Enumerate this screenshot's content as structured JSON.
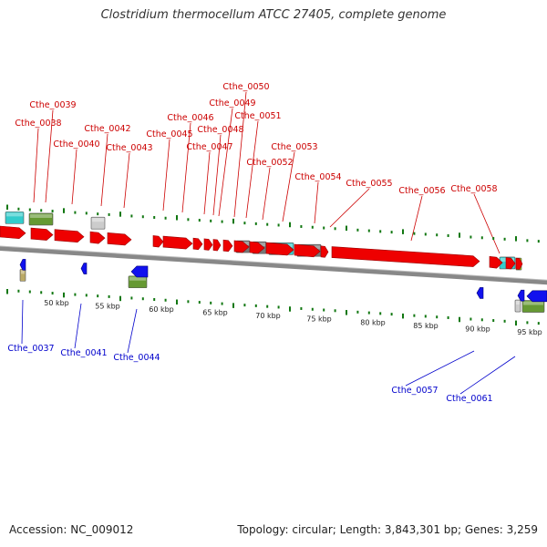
{
  "title": "Clostridium thermocellum ATCC 27405, complete genome",
  "footer": {
    "accession": "Accession: NC_009012",
    "summary": "Topology: circular; Length: 3,843,301 bp; Genes: 3,259"
  },
  "colors": {
    "forward_label": "#cc0000",
    "reverse_label": "#0000cc",
    "forward_gene": "#ee0000",
    "reverse_gene": "#1111ee",
    "backbone": "#888888",
    "tick_forward": "#117711",
    "rna": "#33cccc",
    "feature_green": "#669933",
    "feature_gray": "#777777",
    "feature_light_gray": "#cccccc",
    "feature_olive": "#bbaa66",
    "feature_lime": "#99dd11"
  },
  "scale_labels": [
    "50 kbp",
    "55 kbp",
    "60 kbp",
    "65 kbp",
    "70 kbp",
    "75 kbp",
    "80 kbp",
    "85 kbp",
    "90 kbp",
    "95 kbp"
  ],
  "forward_labels": [
    "Cthe_0038",
    "Cthe_0039",
    "Cthe_0040",
    "Cthe_0042",
    "Cthe_0043",
    "Cthe_0045",
    "Cthe_0046",
    "Cthe_0047",
    "Cthe_0048",
    "Cthe_0049",
    "Cthe_0050",
    "Cthe_0051",
    "Cthe_0052",
    "Cthe_0053",
    "Cthe_0054",
    "Cthe_0055",
    "Cthe_0056",
    "Cthe_0058"
  ],
  "reverse_labels": [
    "Cthe_0037",
    "Cthe_0041",
    "Cthe_0044",
    "Cthe_0057",
    "Cthe_0061"
  ]
}
